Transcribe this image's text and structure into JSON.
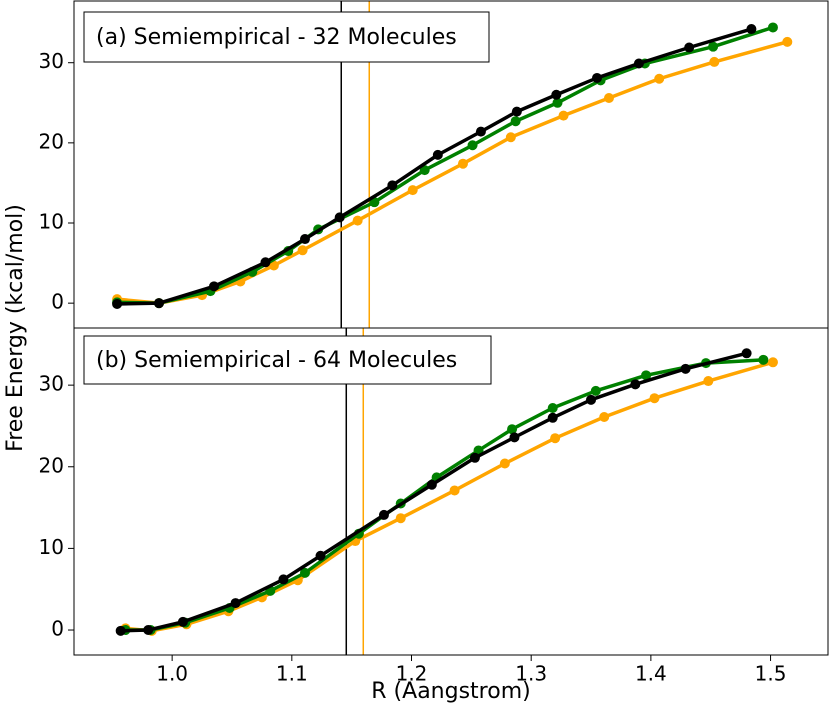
{
  "shared": {
    "ylabel": "Free Energy (kcal/mol)",
    "xlabel": "R (Aangstrom)"
  },
  "chart_data": [
    {
      "type": "line",
      "annotation": "(a) Semiempirical - 32 Molecules",
      "xlim": [
        0.918,
        1.548
      ],
      "ylim": [
        -3.1,
        37.7
      ],
      "yticks": [
        0,
        10,
        20,
        30
      ],
      "vlines": [
        {
          "x": 1.1413,
          "color": "#000000"
        },
        {
          "x": 1.1647,
          "color": "#ffa500"
        }
      ],
      "series": [
        {
          "color": "#ffa500",
          "x": [
            0.954,
            0.989,
            1.025,
            1.057,
            1.085,
            1.109,
            1.155,
            1.201,
            1.243,
            1.283,
            1.327,
            1.365,
            1.407,
            1.453,
            1.514
          ],
          "values": [
            0.5,
            0,
            1.0,
            2.7,
            4.7,
            6.6,
            10.3,
            14.1,
            17.4,
            20.7,
            23.4,
            25.6,
            28.0,
            30.1,
            32.6
          ]
        },
        {
          "color": "#008000",
          "x": [
            0.954,
            0.989,
            1.032,
            1.067,
            1.097,
            1.122,
            1.169,
            1.211,
            1.251,
            1.287,
            1.322,
            1.358,
            1.395,
            1.452,
            1.502
          ],
          "values": [
            0.1,
            0,
            1.5,
            3.9,
            6.5,
            9.2,
            12.6,
            16.6,
            19.7,
            22.7,
            25.0,
            27.8,
            29.9,
            32.0,
            34.4
          ]
        },
        {
          "color": "#000000",
          "x": [
            0.954,
            0.989,
            1.035,
            1.078,
            1.111,
            1.14,
            1.184,
            1.222,
            1.258,
            1.288,
            1.321,
            1.355,
            1.39,
            1.432,
            1.484
          ],
          "values": [
            -0.1,
            0,
            2.1,
            5.1,
            8.0,
            10.7,
            14.7,
            18.5,
            21.4,
            23.9,
            26.0,
            28.1,
            29.9,
            31.9,
            34.2
          ]
        }
      ]
    },
    {
      "type": "line",
      "annotation": "(b) Semiempirical - 64 Molecules",
      "xlim": [
        0.918,
        1.548
      ],
      "ylim": [
        -3.06,
        37.0
      ],
      "yticks": [
        0,
        10,
        20,
        30
      ],
      "xticks": [
        {
          "value": 1,
          "label": "1.0"
        },
        1.1,
        {
          "value": 1.2,
          "label": "1.2"
        },
        1.3,
        1.4,
        1.5
      ],
      "vlines": [
        {
          "x": 1.1455,
          "color": "#000000"
        },
        {
          "x": 1.1597,
          "color": "#ffa500"
        }
      ],
      "series": [
        {
          "color": "#ffa500",
          "x": [
            0.961,
            0.983,
            1.012,
            1.047,
            1.075,
            1.105,
            1.153,
            1.191,
            1.236,
            1.278,
            1.32,
            1.361,
            1.403,
            1.448,
            1.502
          ],
          "values": [
            0.2,
            -0.1,
            0.7,
            2.3,
            4.0,
            6.1,
            10.9,
            13.7,
            17.1,
            20.4,
            23.5,
            26.1,
            28.4,
            30.5,
            32.8
          ]
        },
        {
          "color": "#008000",
          "x": [
            0.961,
            0.982,
            1.011,
            1.048,
            1.082,
            1.111,
            1.156,
            1.191,
            1.221,
            1.256,
            1.284,
            1.318,
            1.354,
            1.396,
            1.446,
            1.494
          ],
          "values": [
            0,
            0.0,
            0.9,
            2.7,
            4.8,
            7.0,
            11.8,
            15.5,
            18.7,
            22.0,
            24.6,
            27.2,
            29.3,
            31.2,
            32.7,
            33.1
          ]
        },
        {
          "color": "#000000",
          "x": [
            0.957,
            0.98,
            1.009,
            1.053,
            1.093,
            1.124,
            1.177,
            1.217,
            1.253,
            1.286,
            1.318,
            1.35,
            1.387,
            1.429,
            1.48
          ],
          "values": [
            -0.1,
            0,
            1.0,
            3.3,
            6.2,
            9.1,
            14.1,
            17.8,
            21.1,
            23.6,
            26.0,
            28.2,
            30.1,
            32.0,
            33.9
          ]
        }
      ]
    }
  ]
}
